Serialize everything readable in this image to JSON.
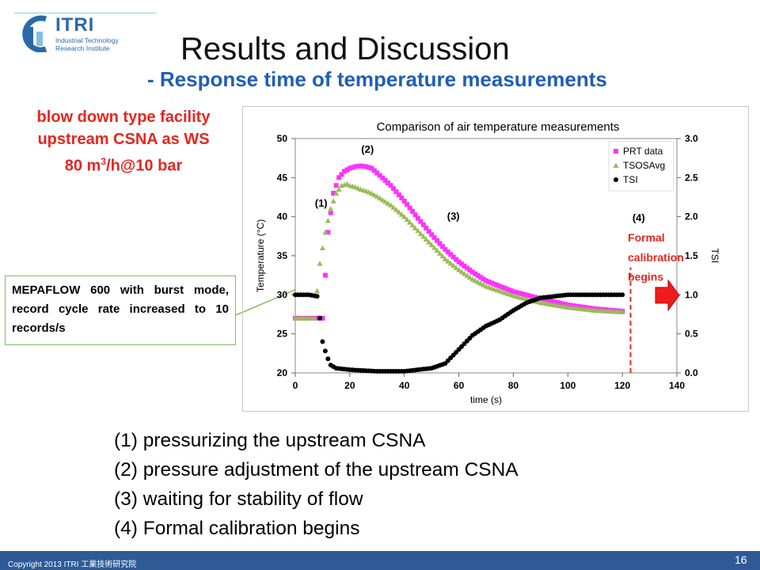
{
  "logo": {
    "name": "ITRI",
    "line1": "Industrial Technology",
    "line2": "Research Institute"
  },
  "title": "Results and Discussion",
  "subtitle": "- Response time of temperature measurements",
  "facility": {
    "line1": "blow down type facility",
    "line2": "upstream CSNA as WS",
    "line3_pre": "80 m",
    "line3_sup": "3",
    "line3_post": "/h@10 bar"
  },
  "mepaflow_note": "MEPAFLOW 600 with burst mode, record cycle rate increased to 10 records/s",
  "notes": [
    "(1) pressurizing the upstream CSNA",
    "(2) pressure adjustment of the upstream CSNA",
    "(3) waiting for stability of flow",
    "(4) Formal calibration begins"
  ],
  "footer": {
    "copyright": "Copyright 2013 ITRI 工業技術研究院",
    "page": "16"
  },
  "colors": {
    "prt": "#ff33ff",
    "tsos": "#9bbb59",
    "tsi": "#000000",
    "accent_red": "#e8251f",
    "title_blue": "#1f5fb5"
  },
  "chart_data": {
    "type": "scatter",
    "title": "Comparison of air temperature measurements",
    "xlabel": "time (s)",
    "ylabel": "Temperature (°C)",
    "y2label": "TSI",
    "xlim": [
      0,
      140
    ],
    "ylim": [
      20,
      50
    ],
    "y2lim": [
      0.0,
      3.0
    ],
    "xticks": [
      "0",
      "20",
      "40",
      "60",
      "80",
      "100",
      "120",
      "140"
    ],
    "yticks": [
      "20",
      "25",
      "30",
      "35",
      "40",
      "45",
      "50"
    ],
    "y2ticks": [
      "0.0",
      "0.5",
      "1.0",
      "1.5",
      "2.0",
      "2.5",
      "3.0"
    ],
    "legend": [
      "PRT data",
      "TSOSAvg",
      "TSI"
    ],
    "legend_position": "top-right",
    "series": [
      {
        "name": "PRT data",
        "axis": "left",
        "marker": "square",
        "x": [
          0,
          5,
          10,
          12,
          14,
          16,
          18,
          20,
          22,
          24,
          26,
          28,
          30,
          35,
          40,
          45,
          50,
          55,
          60,
          65,
          70,
          80,
          90,
          100,
          110,
          120
        ],
        "y": [
          27,
          27,
          27,
          38,
          43,
          45,
          45.8,
          46.2,
          46.4,
          46.5,
          46.4,
          46.2,
          45.6,
          44,
          42,
          39.8,
          37.7,
          35.8,
          34.2,
          32.9,
          31.8,
          30.4,
          29.5,
          28.7,
          28.2,
          27.9
        ]
      },
      {
        "name": "TSOSAvg",
        "axis": "left",
        "marker": "triangle",
        "x": [
          0,
          4,
          7,
          9,
          11,
          13,
          15,
          17,
          19,
          20,
          22,
          24,
          26,
          28,
          30,
          35,
          40,
          45,
          50,
          55,
          60,
          65,
          70,
          80,
          90,
          100,
          110,
          120
        ],
        "y": [
          27,
          27,
          27,
          34,
          38,
          41,
          43,
          44,
          44.2,
          44,
          43.8,
          43.5,
          43.3,
          43,
          42.6,
          41.5,
          40,
          38.2,
          36.4,
          34.6,
          33.2,
          32,
          31.1,
          29.9,
          29,
          28.4,
          28,
          27.8
        ]
      },
      {
        "name": "TSI",
        "axis": "right",
        "marker": "circle",
        "x": [
          0,
          5,
          8,
          9,
          10,
          11,
          12,
          13,
          15,
          20,
          30,
          40,
          50,
          55,
          60,
          65,
          70,
          75,
          80,
          85,
          90,
          100,
          110,
          120
        ],
        "y": [
          1.0,
          1.0,
          0.98,
          0.7,
          0.4,
          0.28,
          0.18,
          0.1,
          0.06,
          0.04,
          0.02,
          0.02,
          0.06,
          0.12,
          0.3,
          0.48,
          0.6,
          0.68,
          0.8,
          0.9,
          0.96,
          1.0,
          1.0,
          1.0
        ]
      }
    ],
    "annotations": [
      {
        "text": "(1)",
        "x": 9.5,
        "y": 41.3
      },
      {
        "text": "(2)",
        "x": 26.5,
        "y": 48.2
      },
      {
        "text": "(3)",
        "x": 58,
        "y": 39.6
      },
      {
        "text": "(4)",
        "x": 126,
        "y": 39.4
      },
      {
        "text": "Formal",
        "x": 122,
        "y": 36.8
      },
      {
        "text": "calibration",
        "x": 122,
        "y": 34.3
      },
      {
        "text": "begins",
        "x": 122,
        "y": 31.8
      }
    ],
    "marker_line_x": 123
  }
}
